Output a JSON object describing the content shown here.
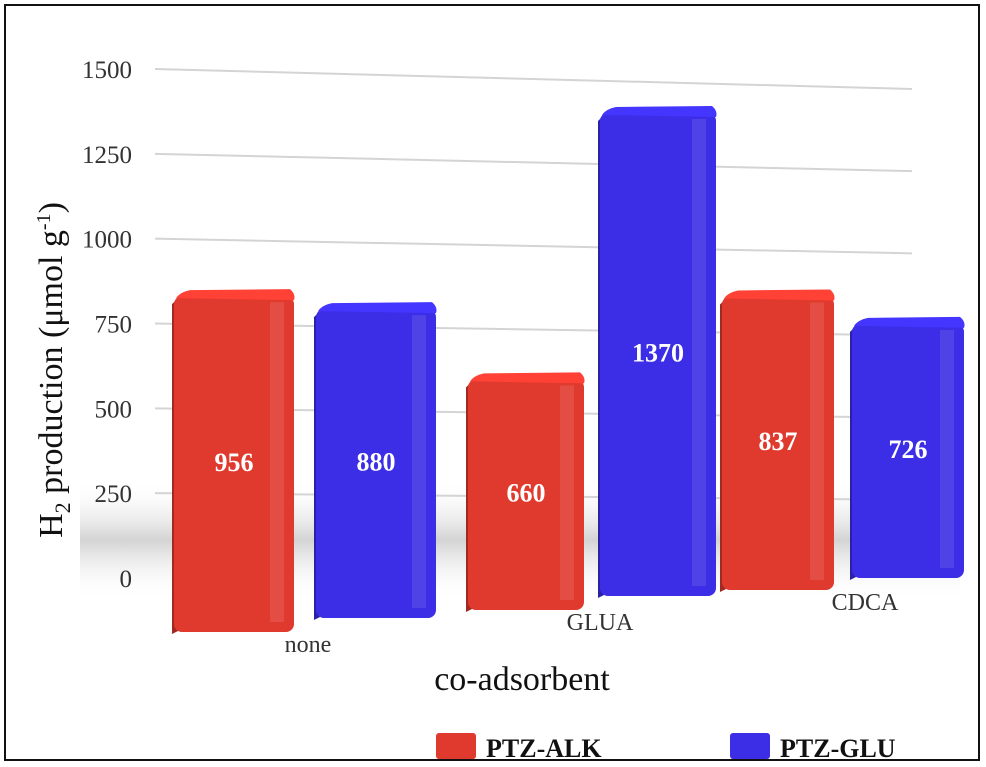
{
  "chart_data": {
    "type": "bar",
    "categories": [
      "none",
      "GLUA",
      "CDCA"
    ],
    "series": [
      {
        "name": "PTZ-ALK",
        "values": [
          956,
          660,
          837
        ],
        "color": "#e0392e"
      },
      {
        "name": "PTZ-GLU",
        "values": [
          880,
          1370,
          726
        ],
        "color": "#3b2ee6"
      }
    ],
    "data_labels": [
      [
        "956",
        "660",
        "837"
      ],
      [
        "880",
        "1370",
        "726"
      ]
    ],
    "yticks": [
      "0",
      "250",
      "500",
      "750",
      "1000",
      "1250",
      "1500"
    ],
    "ylim": [
      0,
      1500
    ],
    "ylabel_main": "H",
    "ylabel_sub": "2",
    "ylabel_rest": " production  (μmol g",
    "ylabel_sup": "-1",
    "ylabel_end": ")",
    "xlabel": "co-adsorbent",
    "grid": true,
    "legend_position": "bottom",
    "style": "3d perspective bars"
  }
}
